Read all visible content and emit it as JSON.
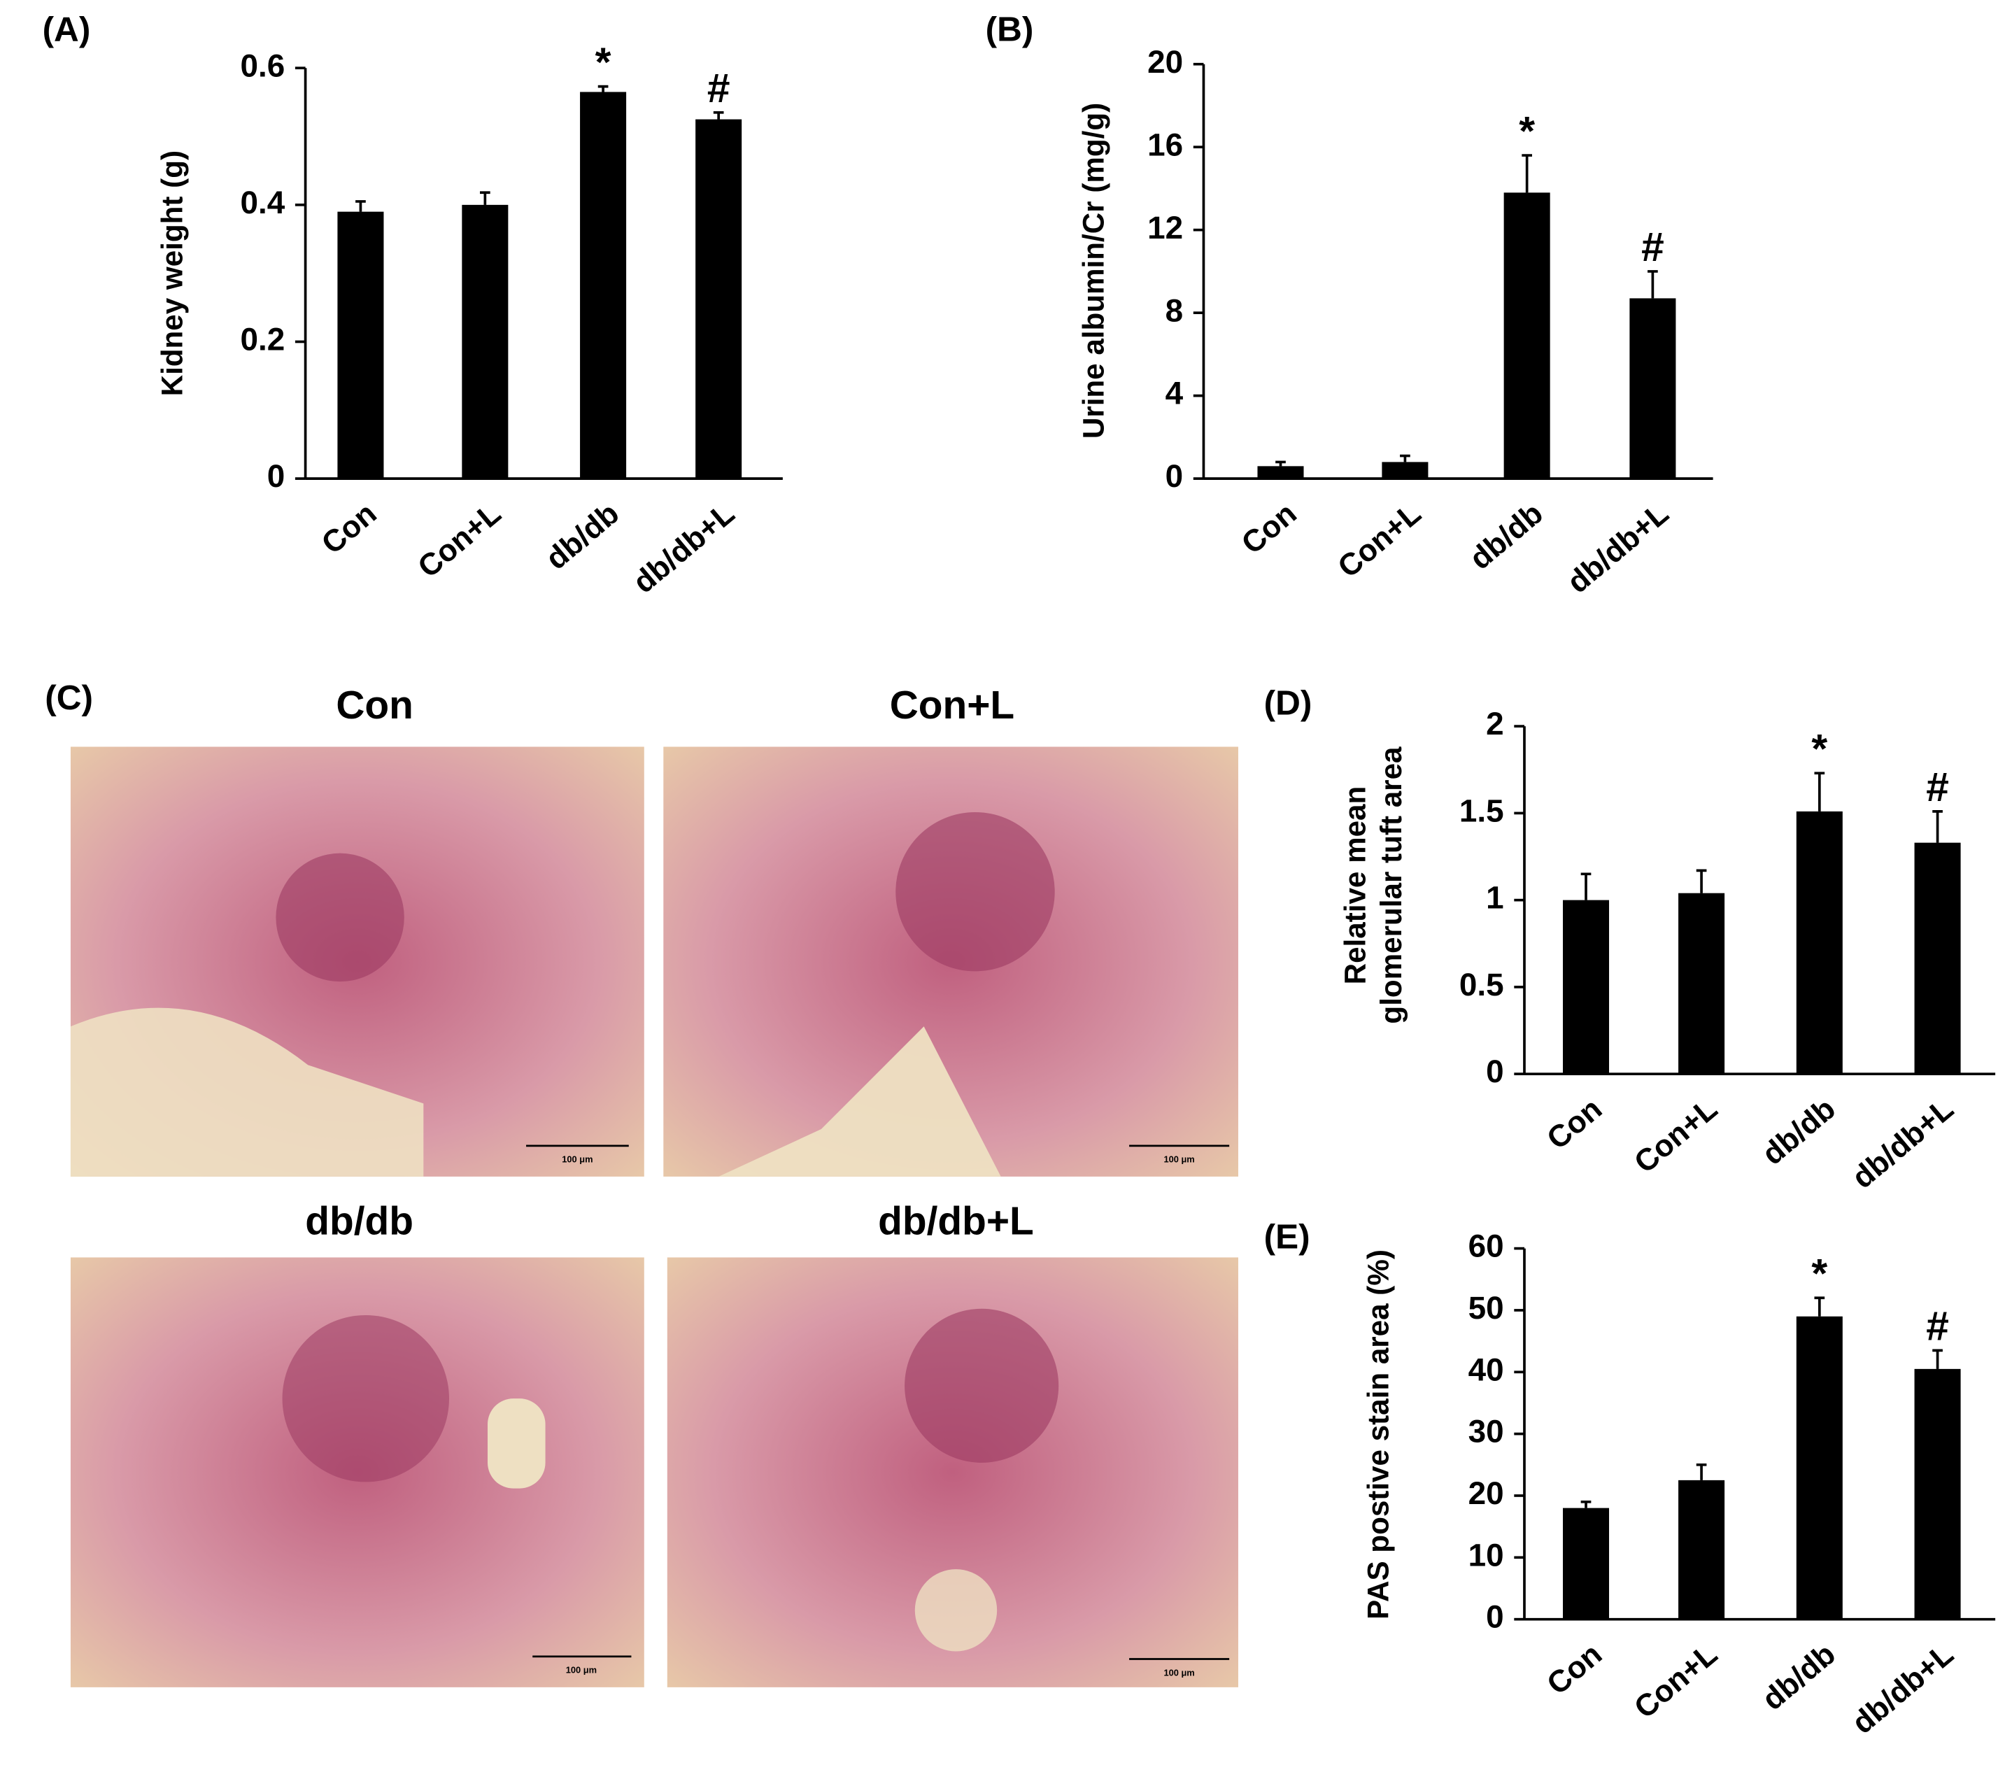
{
  "chart_data": [
    {
      "type": "bar",
      "panel": "(A)",
      "ylabel": "Kidney weight (g)",
      "categories": [
        "Con",
        "Con+L",
        "db/db",
        "db/db+L"
      ],
      "values": [
        0.39,
        0.4,
        0.565,
        0.525
      ],
      "errors": [
        0.015,
        0.018,
        0.008,
        0.01
      ],
      "annotations": [
        null,
        null,
        "*",
        "#"
      ],
      "color": "#000000",
      "ylim": [
        0,
        0.6
      ],
      "yticks": [
        0,
        0.2,
        0.4,
        0.6
      ]
    },
    {
      "type": "bar",
      "panel": "(B)",
      "ylabel": "Urine albumin/Cr (mg/g)",
      "categories": [
        "Con",
        "Con+L",
        "db/db",
        "db/db+L"
      ],
      "values": [
        0.6,
        0.8,
        13.8,
        8.7
      ],
      "errors": [
        0.2,
        0.3,
        1.8,
        1.3
      ],
      "annotations": [
        null,
        null,
        "*",
        "#"
      ],
      "color": "#000000",
      "ylim": [
        0,
        20
      ],
      "yticks": [
        0,
        4,
        8,
        12,
        16,
        20
      ]
    },
    {
      "type": "bar",
      "panel": "(D)",
      "ylabel": [
        "Relative mean",
        "glomerular tuft area"
      ],
      "categories": [
        "Con",
        "Con+L",
        "db/db",
        "db/db+L"
      ],
      "values": [
        1.0,
        1.04,
        1.51,
        1.33
      ],
      "errors": [
        0.15,
        0.13,
        0.22,
        0.18
      ],
      "annotations": [
        null,
        null,
        "*",
        "#"
      ],
      "color": "#000000",
      "ylim": [
        0,
        2
      ],
      "yticks": [
        0,
        0.5,
        1,
        1.5,
        2
      ]
    },
    {
      "type": "bar",
      "panel": "(E)",
      "ylabel": "PAS postive stain area (%)",
      "categories": [
        "Con",
        "Con+L",
        "db/db",
        "db/db+L"
      ],
      "values": [
        18,
        22.5,
        49,
        40.5
      ],
      "errors": [
        1,
        2.5,
        3,
        3
      ],
      "annotations": [
        null,
        null,
        "*",
        "#"
      ],
      "color": "#000000",
      "ylim": [
        0,
        60
      ],
      "yticks": [
        0,
        10,
        20,
        30,
        40,
        50,
        60
      ]
    }
  ],
  "micrographs": {
    "panel": "(C)",
    "titles": [
      "Con",
      "Con+L",
      "db/db",
      "db/db+L"
    ],
    "scale_bar": "100 μm"
  }
}
